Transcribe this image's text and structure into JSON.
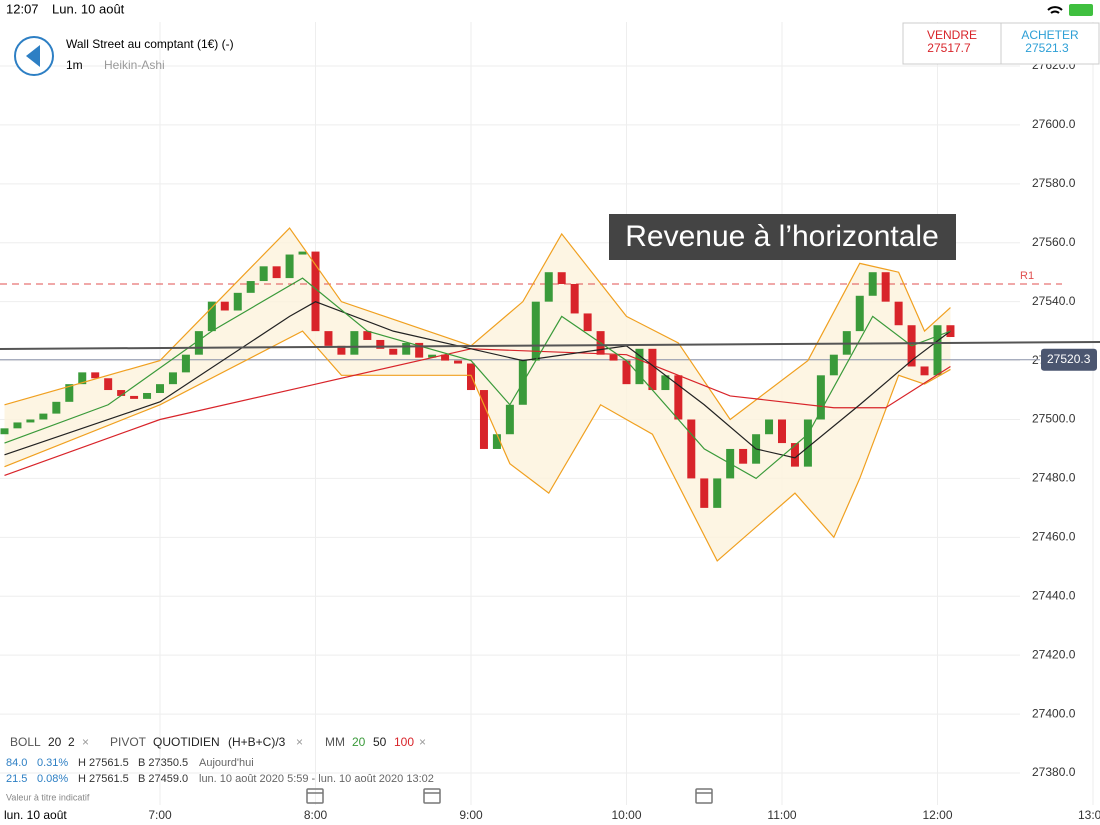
{
  "status_bar": {
    "time": "12:07",
    "date": "Lun. 10 août"
  },
  "header": {
    "instrument": "Wall Street au comptant (1€) (-)",
    "interval": "1m",
    "chart_style": "Heikin-Ashi"
  },
  "quote": {
    "sell_label": "VENDRE",
    "sell_price": "27517.7",
    "buy_label": "ACHETER",
    "buy_price": "27521.3"
  },
  "annotation": "Revenue à l’horizontale",
  "indicators": {
    "boll": [
      "BOLL",
      "20",
      "2"
    ],
    "pivot": [
      "PIVOT",
      "QUOTIDIEN",
      "(H+B+C)/3"
    ],
    "mm": [
      "MM",
      "20",
      "50",
      "100"
    ],
    "remove": "×"
  },
  "stats": [
    [
      "84.0",
      "0.31%",
      "H 27561.5",
      "B 27350.5",
      "Aujourd'hui"
    ],
    [
      "21.5",
      "0.08%",
      "H 27561.5",
      "B 27459.0",
      "lun. 10 août 2020 5:59 - lun. 10 août 2020 13:02"
    ]
  ],
  "disclaimer": "Valeur à titre indicatif",
  "day_label": "lun. 10 août",
  "chart_data": {
    "type": "candlestick",
    "x": [
      360,
      365,
      370,
      375,
      380,
      385,
      390,
      395,
      400,
      405,
      410,
      415,
      420,
      425,
      430,
      435,
      440,
      445,
      450,
      455,
      460,
      465,
      470,
      475,
      480,
      485,
      490,
      495,
      500,
      505,
      510,
      515,
      520,
      525,
      530,
      535,
      540,
      545,
      550,
      555,
      560,
      565,
      570,
      575,
      580,
      585,
      590,
      595,
      600,
      605,
      610,
      615,
      620,
      625,
      630,
      635,
      640,
      645,
      650,
      655,
      660,
      665,
      670,
      675,
      680,
      685,
      690,
      695,
      700,
      705,
      710,
      715,
      720,
      725
    ],
    "open": [
      27495,
      27497,
      27499,
      27500,
      27502,
      27506,
      27512,
      27516,
      27514,
      27510,
      27508,
      27507,
      27509,
      27512,
      27516,
      27522,
      27530,
      27540,
      27537,
      27543,
      27547,
      27552,
      27548,
      27556,
      27557,
      27530,
      27525,
      27522,
      27530,
      27527,
      27524,
      27522,
      27526,
      27521,
      27522,
      27520,
      27519,
      27510,
      27490,
      27495,
      27505,
      27520,
      27540,
      27550,
      27546,
      27536,
      27530,
      27522,
      27520,
      27512,
      27524,
      27510,
      27515,
      27500,
      27480,
      27470,
      27480,
      27490,
      27485,
      27495,
      27500,
      27492,
      27484,
      27500,
      27515,
      27522,
      27530,
      27542,
      27550,
      27540,
      27532,
      27518,
      27515,
      27532
    ],
    "close": [
      27497,
      27499,
      27500,
      27502,
      27506,
      27512,
      27516,
      27514,
      27510,
      27508,
      27507,
      27509,
      27512,
      27516,
      27522,
      27530,
      27540,
      27537,
      27543,
      27547,
      27552,
      27548,
      27556,
      27557,
      27530,
      27525,
      27522,
      27530,
      27527,
      27524,
      27522,
      27526,
      27521,
      27522,
      27520,
      27519,
      27510,
      27490,
      27495,
      27505,
      27520,
      27540,
      27550,
      27546,
      27536,
      27530,
      27522,
      27520,
      27512,
      27524,
      27510,
      27515,
      27500,
      27480,
      27470,
      27480,
      27490,
      27485,
      27495,
      27500,
      27492,
      27484,
      27500,
      27515,
      27522,
      27530,
      27542,
      27550,
      27540,
      27532,
      27518,
      27515,
      27532,
      27528
    ],
    "up_color": "#3a9a3a",
    "down_color": "#d8242a",
    "lines": [
      {
        "color": "#f0a020",
        "x": [
          360,
          420,
          470,
          490,
          540,
          560,
          575,
          600,
          620,
          640,
          670,
          690,
          705,
          715,
          725
        ],
        "values": [
          27505,
          27520,
          27565,
          27540,
          27525,
          27540,
          27563,
          27535,
          27526,
          27500,
          27520,
          27553,
          27550,
          27530,
          27538
        ]
      },
      {
        "color": "#f0a020",
        "x": [
          360,
          420,
          475,
          490,
          540,
          555,
          570,
          590,
          610,
          635,
          665,
          680,
          690,
          705,
          715,
          725
        ],
        "values": [
          27484,
          27505,
          27530,
          27515,
          27515,
          27485,
          27475,
          27505,
          27495,
          27452,
          27475,
          27460,
          27480,
          27515,
          27512,
          27517
        ]
      },
      {
        "color": "#d8242a",
        "x": [
          360,
          420,
          480,
          540,
          600,
          640,
          680,
          700,
          725
        ],
        "values": [
          27481,
          27500,
          27512,
          27524,
          27522,
          27508,
          27504,
          27504,
          27518
        ]
      },
      {
        "color": "#222222",
        "x": [
          360,
          420,
          470,
          480,
          510,
          540,
          560,
          600,
          630,
          650,
          665,
          690,
          710,
          725
        ],
        "values": [
          27488,
          27506,
          27535,
          27540,
          27530,
          27524,
          27520,
          27525,
          27505,
          27490,
          27487,
          27505,
          27520,
          27530
        ]
      },
      {
        "color": "#3a9a3a",
        "x": [
          360,
          400,
          440,
          475,
          500,
          540,
          555,
          575,
          600,
          630,
          650,
          670,
          695,
          710,
          725
        ],
        "values": [
          27492,
          27505,
          27530,
          27548,
          27530,
          27520,
          27505,
          27535,
          27520,
          27490,
          27480,
          27495,
          27535,
          27525,
          27530
        ]
      }
    ],
    "pivot": {
      "label": "R1",
      "value": 27546
    },
    "last_price": {
      "value": 27520.3,
      "label": "27520.3"
    },
    "xlim": [
      360,
      780
    ],
    "xticks": [
      {
        "value": 420,
        "label": "7:00"
      },
      {
        "value": 480,
        "label": "8:00"
      },
      {
        "value": 540,
        "label": "9:00"
      },
      {
        "value": 600,
        "label": "10:00"
      },
      {
        "value": 660,
        "label": "11:00"
      },
      {
        "value": 720,
        "label": "12:00"
      },
      {
        "value": 780,
        "label": "13:00"
      }
    ],
    "ylim": [
      27380,
      27620
    ],
    "yticks": [
      {
        "value": 27380,
        "label": "27380.0"
      },
      {
        "value": 27400,
        "label": "27400.0"
      },
      {
        "value": 27420,
        "label": "27420.0"
      },
      {
        "value": 27440,
        "label": "27440.0"
      },
      {
        "value": 27460,
        "label": "27460.0"
      },
      {
        "value": 27480,
        "label": "27480.0"
      },
      {
        "value": 27500,
        "label": "27500.0"
      },
      {
        "value": 27520,
        "label": "27520.0"
      },
      {
        "value": 27540,
        "label": "27540.0"
      },
      {
        "value": 27560,
        "label": "27560.0"
      },
      {
        "value": 27580,
        "label": "27580.0"
      },
      {
        "value": 27600,
        "label": "27600.0"
      },
      {
        "value": 27620,
        "label": "27620.0"
      }
    ],
    "grid": true
  }
}
